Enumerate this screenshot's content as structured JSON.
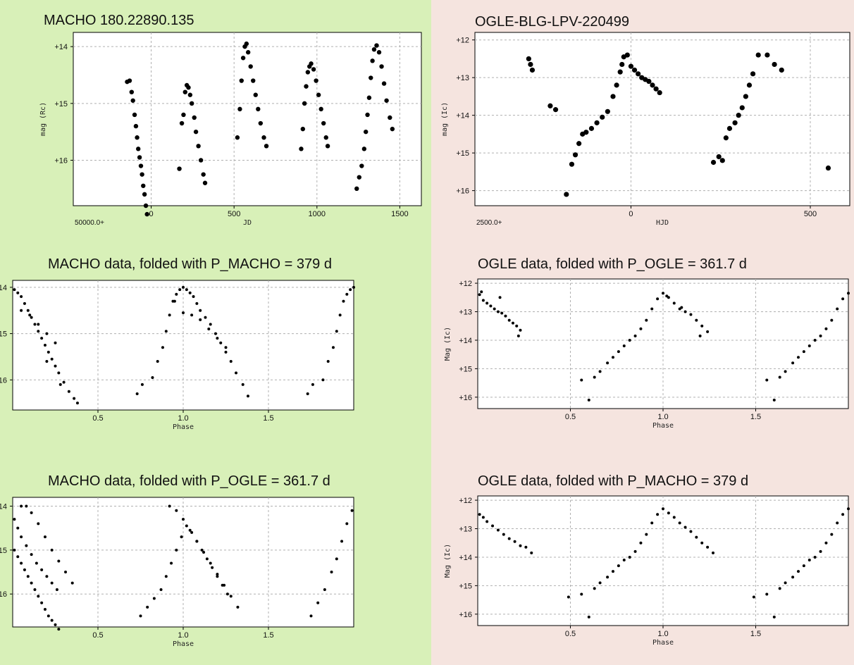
{
  "colors": {
    "left_bg": "#d8f0b8",
    "right_bg": "#f5e4df",
    "plot_bg": "#ffffff",
    "point": "#000000",
    "grid": "#b0b0b0"
  },
  "chart_data": [
    {
      "type": "scatter",
      "title": "MACHO 180.22890.135",
      "xlabel": "JD",
      "ylabel": "mag (Rc)",
      "x_offset_label": "50000.0+",
      "xlim": [
        -470,
        1630
      ],
      "ylim": [
        16.8,
        13.75
      ],
      "xticks": [
        0,
        500,
        1000,
        1500
      ],
      "xtick_labels": [
        "0",
        "500",
        "1000",
        "1500"
      ],
      "yticks": [
        14,
        15,
        16
      ],
      "ytick_labels": [
        "+14",
        "+15",
        "+16"
      ],
      "grid": true,
      "x": [
        -145,
        -130,
        -118,
        -110,
        -100,
        -92,
        -85,
        -78,
        -70,
        -62,
        -55,
        -48,
        -40,
        -32,
        -25,
        170,
        185,
        195,
        205,
        215,
        225,
        235,
        245,
        260,
        270,
        285,
        300,
        315,
        325,
        520,
        535,
        545,
        555,
        565,
        575,
        585,
        600,
        615,
        630,
        645,
        660,
        680,
        695,
        905,
        915,
        925,
        935,
        945,
        955,
        965,
        980,
        995,
        1010,
        1025,
        1040,
        1055,
        1065,
        1240,
        1255,
        1270,
        1285,
        1295,
        1305,
        1315,
        1325,
        1335,
        1345,
        1360,
        1375,
        1390,
        1405,
        1420,
        1440,
        1455
      ],
      "y": [
        14.62,
        14.6,
        14.8,
        14.95,
        15.2,
        15.4,
        15.6,
        15.8,
        15.95,
        16.1,
        16.25,
        16.45,
        16.6,
        16.8,
        16.95,
        16.15,
        15.35,
        15.2,
        14.8,
        14.68,
        14.72,
        14.85,
        15.0,
        15.25,
        15.5,
        15.75,
        16.0,
        16.25,
        16.4,
        15.6,
        15.1,
        14.6,
        14.2,
        14.0,
        13.95,
        14.1,
        14.35,
        14.6,
        14.85,
        15.1,
        15.35,
        15.6,
        15.75,
        15.8,
        15.45,
        15.0,
        14.7,
        14.45,
        14.35,
        14.3,
        14.4,
        14.6,
        14.85,
        15.1,
        15.35,
        15.6,
        15.75,
        16.5,
        16.3,
        16.1,
        15.8,
        15.5,
        15.2,
        14.9,
        14.55,
        14.25,
        14.05,
        13.98,
        14.1,
        14.35,
        14.65,
        14.95,
        15.25,
        15.45
      ]
    },
    {
      "type": "scatter",
      "title": "OGLE-BLG-LPV-220499",
      "xlabel": "HJD",
      "ylabel": "mag (Ic)",
      "x_offset_label": "2500.0+",
      "xlim": [
        -435,
        610
      ],
      "ylim": [
        16.4,
        11.8
      ],
      "xticks": [
        0,
        500
      ],
      "xtick_labels": [
        "0",
        "500"
      ],
      "yticks": [
        12,
        13,
        14,
        15,
        16
      ],
      "ytick_labels": [
        "+12",
        "+13",
        "+14",
        "+15",
        "+16"
      ],
      "grid": true,
      "x": [
        -285,
        -280,
        -275,
        -225,
        -210,
        -180,
        -165,
        -155,
        -145,
        -135,
        -125,
        -110,
        -95,
        -80,
        -65,
        -50,
        -40,
        -30,
        -25,
        -20,
        -10,
        0,
        10,
        20,
        30,
        40,
        50,
        60,
        70,
        80,
        230,
        245,
        255,
        265,
        275,
        290,
        300,
        310,
        320,
        330,
        340,
        355,
        380,
        400,
        420,
        550
      ],
      "y": [
        12.5,
        12.65,
        12.8,
        13.75,
        13.85,
        16.1,
        15.3,
        15.05,
        14.75,
        14.5,
        14.45,
        14.35,
        14.2,
        14.05,
        13.9,
        13.5,
        13.2,
        12.85,
        12.65,
        12.45,
        12.4,
        12.7,
        12.8,
        12.9,
        13.0,
        13.05,
        13.1,
        13.2,
        13.3,
        13.4,
        15.25,
        15.1,
        15.2,
        14.6,
        14.35,
        14.2,
        14.0,
        13.8,
        13.5,
        13.2,
        12.9,
        12.4,
        12.4,
        12.65,
        12.8,
        15.4
      ]
    },
    {
      "type": "scatter",
      "title": "MACHO data, folded with P_MACHO = 379 d",
      "xlabel": "Phase",
      "ylabel": "Mag (Rc)",
      "xlim": [
        0,
        2
      ],
      "ylim": [
        16.65,
        13.85
      ],
      "xticks": [
        0.5,
        1.0,
        1.5
      ],
      "xtick_labels": [
        "0.5",
        "1.0",
        "1.5"
      ],
      "yticks": [
        14,
        15,
        16
      ],
      "ytick_labels": [
        "+14",
        "+15",
        "+16"
      ],
      "grid": true,
      "x": [
        0.01,
        0.03,
        0.05,
        0.07,
        0.09,
        0.11,
        0.13,
        0.15,
        0.17,
        0.19,
        0.21,
        0.23,
        0.25,
        0.27,
        0.3,
        0.33,
        0.36,
        0.38,
        0.05,
        0.1,
        0.15,
        0.2,
        0.25,
        0.2,
        0.28,
        0.73,
        0.76,
        0.82,
        0.85,
        0.88,
        0.9,
        0.92,
        0.94,
        0.96,
        0.98,
        1.0,
        1.02,
        1.04,
        1.06,
        1.08,
        1.1,
        1.13,
        1.16,
        1.19,
        1.22,
        1.25,
        1.28,
        1.31,
        1.35,
        1.38,
        0.95,
        1.0,
        1.05,
        1.1,
        1.15,
        1.2,
        1.25,
        1.73,
        1.76,
        1.82,
        1.85,
        1.88,
        1.9,
        1.92,
        1.94,
        1.96,
        1.98,
        2.0
      ],
      "y": [
        14.05,
        14.12,
        14.2,
        14.35,
        14.5,
        14.65,
        14.8,
        14.95,
        15.1,
        15.25,
        15.4,
        15.55,
        15.7,
        15.85,
        16.05,
        16.25,
        16.4,
        16.5,
        14.5,
        14.6,
        14.8,
        15.0,
        15.2,
        15.6,
        16.1,
        16.3,
        16.1,
        15.95,
        15.6,
        15.3,
        14.95,
        14.6,
        14.3,
        14.15,
        14.05,
        14.0,
        14.05,
        14.12,
        14.2,
        14.35,
        14.5,
        14.65,
        14.8,
        15.0,
        15.2,
        15.4,
        15.6,
        15.85,
        16.1,
        16.35,
        14.3,
        14.55,
        14.6,
        14.7,
        14.9,
        15.1,
        15.3,
        16.3,
        16.1,
        16.0,
        15.6,
        15.3,
        14.95,
        14.6,
        14.3,
        14.15,
        14.05,
        14.0
      ]
    },
    {
      "type": "scatter",
      "title": "OGLE data, folded with P_OGLE = 361.7 d",
      "xlabel": "Phase",
      "ylabel": "Mag (Ic)",
      "xlim": [
        0,
        2
      ],
      "ylim": [
        16.4,
        11.85
      ],
      "xticks": [
        0.5,
        1.0,
        1.5
      ],
      "xtick_labels": [
        "0.5",
        "1.0",
        "1.5"
      ],
      "yticks": [
        12,
        13,
        14,
        15,
        16
      ],
      "ytick_labels": [
        "+12",
        "+13",
        "+14",
        "+15",
        "+16"
      ],
      "grid": true,
      "x": [
        0.01,
        0.03,
        0.05,
        0.07,
        0.09,
        0.11,
        0.13,
        0.15,
        0.17,
        0.19,
        0.21,
        0.23,
        0.02,
        0.12,
        0.22,
        0.56,
        0.6,
        0.63,
        0.66,
        0.7,
        0.73,
        0.76,
        0.79,
        0.82,
        0.85,
        0.88,
        0.91,
        0.94,
        0.97,
        1.0,
        1.03,
        1.06,
        1.09,
        1.12,
        1.15,
        1.18,
        1.21,
        1.24,
        1.02,
        1.1,
        1.2,
        1.56,
        1.6,
        1.63,
        1.66,
        1.7,
        1.73,
        1.76,
        1.79,
        1.82,
        1.85,
        1.88,
        1.91,
        1.94,
        1.97,
        2.0
      ],
      "y": [
        12.4,
        12.6,
        12.7,
        12.8,
        12.9,
        13.0,
        13.05,
        13.15,
        13.3,
        13.4,
        13.5,
        13.65,
        12.3,
        12.5,
        13.85,
        15.4,
        16.1,
        15.3,
        15.1,
        14.8,
        14.6,
        14.4,
        14.2,
        14.0,
        13.85,
        13.6,
        13.3,
        12.9,
        12.55,
        12.35,
        12.5,
        12.7,
        12.9,
        13.0,
        13.1,
        13.3,
        13.5,
        13.7,
        12.45,
        12.85,
        13.85,
        15.4,
        16.1,
        15.3,
        15.1,
        14.8,
        14.6,
        14.4,
        14.2,
        14.0,
        13.85,
        13.6,
        13.3,
        12.9,
        12.55,
        12.35
      ]
    },
    {
      "type": "scatter",
      "title": "MACHO data, folded with P_OGLE = 361.7 d",
      "xlabel": "Phase",
      "ylabel": "Mag (Rc)",
      "xlim": [
        0,
        2
      ],
      "ylim": [
        16.75,
        13.8
      ],
      "xticks": [
        0.5,
        1.0,
        1.5
      ],
      "xtick_labels": [
        "0.5",
        "1.0",
        "1.5"
      ],
      "yticks": [
        14,
        15,
        16
      ],
      "ytick_labels": [
        "+14",
        "+15",
        "+16"
      ],
      "grid": true,
      "x": [
        0.01,
        0.03,
        0.05,
        0.07,
        0.09,
        0.11,
        0.13,
        0.15,
        0.17,
        0.19,
        0.21,
        0.23,
        0.25,
        0.27,
        0.01,
        0.03,
        0.05,
        0.08,
        0.11,
        0.14,
        0.17,
        0.2,
        0.23,
        0.26,
        0.05,
        0.08,
        0.11,
        0.15,
        0.19,
        0.23,
        0.27,
        0.31,
        0.35,
        0.75,
        0.79,
        0.83,
        0.87,
        0.9,
        0.93,
        0.96,
        0.99,
        1.02,
        1.05,
        1.08,
        1.11,
        1.14,
        1.17,
        1.2,
        1.23,
        1.26,
        0.92,
        0.96,
        1.0,
        1.04,
        1.08,
        1.12,
        1.16,
        1.2,
        1.24,
        1.28,
        1.32,
        1.75,
        1.79,
        1.83,
        1.87,
        1.9,
        1.93,
        1.96,
        1.99
      ],
      "y": [
        15.0,
        15.15,
        15.3,
        15.45,
        15.6,
        15.75,
        15.9,
        16.05,
        16.2,
        16.35,
        16.5,
        16.6,
        16.7,
        16.8,
        14.3,
        14.5,
        14.7,
        14.9,
        15.1,
        15.3,
        15.45,
        15.6,
        15.75,
        15.9,
        14.0,
        14.0,
        14.15,
        14.4,
        14.7,
        15.0,
        15.25,
        15.5,
        15.75,
        16.5,
        16.3,
        16.1,
        15.9,
        15.6,
        15.3,
        15.0,
        14.7,
        14.45,
        14.6,
        14.8,
        15.0,
        15.2,
        15.4,
        15.6,
        15.8,
        16.0,
        14.0,
        14.1,
        14.3,
        14.55,
        14.8,
        15.05,
        15.3,
        15.55,
        15.8,
        16.05,
        16.3,
        16.5,
        16.2,
        15.9,
        15.5,
        15.2,
        14.8,
        14.4,
        14.1
      ]
    },
    {
      "type": "scatter",
      "title": "OGLE data, folded with P_MACHO = 379 d",
      "xlabel": "Phase",
      "ylabel": "Mag (Ic)",
      "xlim": [
        0,
        2
      ],
      "ylim": [
        16.4,
        11.85
      ],
      "xticks": [
        0.5,
        1.0,
        1.5
      ],
      "xtick_labels": [
        "0.5",
        "1.0",
        "1.5"
      ],
      "yticks": [
        12,
        13,
        14,
        15,
        16
      ],
      "ytick_labels": [
        "+12",
        "+13",
        "+14",
        "+15",
        "+16"
      ],
      "grid": true,
      "x": [
        0.01,
        0.03,
        0.05,
        0.08,
        0.11,
        0.14,
        0.17,
        0.2,
        0.23,
        0.26,
        0.29,
        0.49,
        0.56,
        0.6,
        0.63,
        0.66,
        0.7,
        0.73,
        0.76,
        0.79,
        0.82,
        0.85,
        0.88,
        0.91,
        0.94,
        0.97,
        1.0,
        1.03,
        1.06,
        1.09,
        1.12,
        1.15,
        1.18,
        1.21,
        1.24,
        1.27,
        1.49,
        1.56,
        1.6,
        1.63,
        1.66,
        1.7,
        1.73,
        1.76,
        1.79,
        1.82,
        1.85,
        1.88,
        1.91,
        1.94,
        1.97,
        2.0
      ],
      "y": [
        12.5,
        12.6,
        12.75,
        12.9,
        13.05,
        13.2,
        13.35,
        13.45,
        13.6,
        13.65,
        13.85,
        15.4,
        15.3,
        16.1,
        15.1,
        14.9,
        14.7,
        14.5,
        14.3,
        14.1,
        14.0,
        13.8,
        13.5,
        13.2,
        12.8,
        12.5,
        12.3,
        12.45,
        12.6,
        12.8,
        12.95,
        13.1,
        13.3,
        13.5,
        13.65,
        13.85,
        15.4,
        15.3,
        16.1,
        15.1,
        14.9,
        14.7,
        14.5,
        14.3,
        14.1,
        14.0,
        13.8,
        13.5,
        13.2,
        12.8,
        12.5,
        12.3
      ]
    }
  ]
}
